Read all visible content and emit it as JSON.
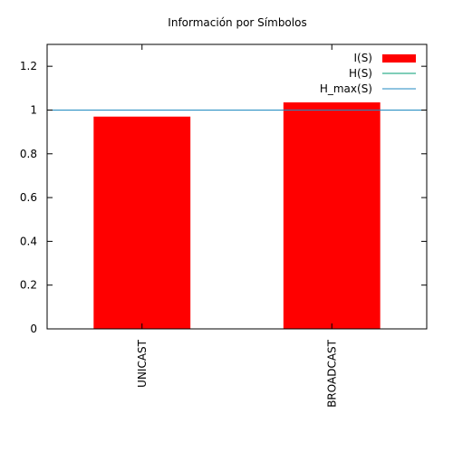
{
  "chart_data": {
    "type": "bar",
    "title": "Información por Símbolos",
    "categories": [
      "UNICAST",
      "BROADCAST"
    ],
    "series": [
      {
        "name": "I(S)",
        "values": [
          0.97,
          1.035
        ],
        "color": "#ff0000",
        "kind": "bar"
      },
      {
        "name": "H(S)",
        "values": [
          1.0,
          1.0
        ],
        "color": "#009e73",
        "kind": "line"
      },
      {
        "name": "H_max(S)",
        "values": [
          1.0,
          1.0
        ],
        "color": "#1f8ac0",
        "kind": "line"
      }
    ],
    "xlabel": "",
    "ylabel": "",
    "ylim": [
      0,
      1.3
    ],
    "yticks": [
      0,
      0.2,
      0.4,
      0.6,
      0.8,
      1,
      1.2
    ],
    "ytick_labels": [
      "0",
      "0.2",
      "0.4",
      "0.6",
      "0.8",
      "1",
      "1.2"
    ],
    "legend_position": "top-right",
    "grid": false
  }
}
